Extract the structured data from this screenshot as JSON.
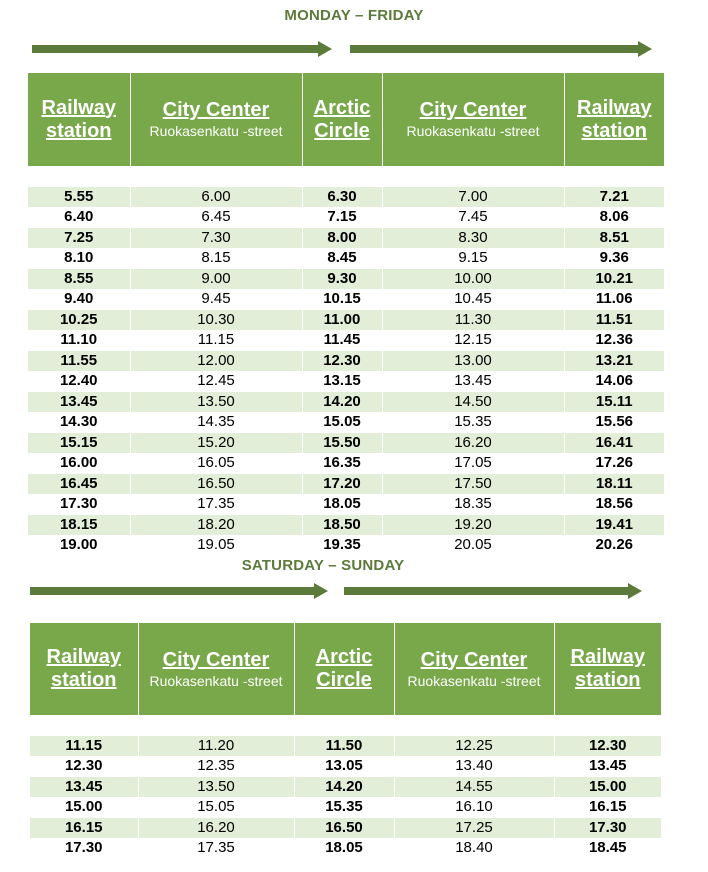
{
  "weekday": {
    "title": "MONDAY – FRIDAY",
    "headers": [
      {
        "title": "Railway station",
        "sub": ""
      },
      {
        "title": "City Center",
        "sub": "Ruokasenkatu -street"
      },
      {
        "title": "Arctic Circle",
        "sub": ""
      },
      {
        "title": "City Center",
        "sub": "Ruokasenkatu -street"
      },
      {
        "title": "Railway station",
        "sub": ""
      }
    ],
    "rows": [
      [
        "5.55",
        "6.00",
        "6.30",
        "7.00",
        "7.21"
      ],
      [
        "6.40",
        "6.45",
        "7.15",
        "7.45",
        "8.06"
      ],
      [
        "7.25",
        "7.30",
        "8.00",
        "8.30",
        "8.51"
      ],
      [
        "8.10",
        "8.15",
        "8.45",
        "9.15",
        "9.36"
      ],
      [
        "8.55",
        "9.00",
        "9.30",
        "10.00",
        "10.21"
      ],
      [
        "9.40",
        "9.45",
        "10.15",
        "10.45",
        "11.06"
      ],
      [
        "10.25",
        "10.30",
        "11.00",
        "11.30",
        "11.51"
      ],
      [
        "11.10",
        "11.15",
        "11.45",
        "12.15",
        "12.36"
      ],
      [
        "11.55",
        "12.00",
        "12.30",
        "13.00",
        "13.21"
      ],
      [
        "12.40",
        "12.45",
        "13.15",
        "13.45",
        "14.06"
      ],
      [
        "13.45",
        "13.50",
        "14.20",
        "14.50",
        "15.11"
      ],
      [
        "14.30",
        "14.35",
        "15.05",
        "15.35",
        "15.56"
      ],
      [
        "15.15",
        "15.20",
        "15.50",
        "16.20",
        "16.41"
      ],
      [
        "16.00",
        "16.05",
        "16.35",
        "17.05",
        "17.26"
      ],
      [
        "16.45",
        "16.50",
        "17.20",
        "17.50",
        "18.11"
      ],
      [
        "17.30",
        "17.35",
        "18.05",
        "18.35",
        "18.56"
      ],
      [
        "18.15",
        "18.20",
        "18.50",
        "19.20",
        "19.41"
      ],
      [
        "19.00",
        "19.05",
        "19.35",
        "20.05",
        "20.26"
      ]
    ]
  },
  "weekend": {
    "title": "SATURDAY – SUNDAY",
    "headers": [
      {
        "title": "Railway station",
        "sub": ""
      },
      {
        "title": "City Center",
        "sub": "Ruokasenkatu -street"
      },
      {
        "title": "Arctic Circle",
        "sub": ""
      },
      {
        "title": "City Center",
        "sub": "Ruokasenkatu -street"
      },
      {
        "title": "Railway station",
        "sub": ""
      }
    ],
    "rows": [
      [
        "11.15",
        "11.20",
        "11.50",
        "12.25",
        "12.30"
      ],
      [
        "12.30",
        "12.35",
        "13.05",
        "13.40",
        "13.45"
      ],
      [
        "13.45",
        "13.50",
        "14.20",
        "14.55",
        "15.00"
      ],
      [
        "15.00",
        "15.05",
        "15.35",
        "16.10",
        "16.15"
      ],
      [
        "16.15",
        "16.20",
        "16.50",
        "17.25",
        "17.30"
      ],
      [
        "17.30",
        "17.35",
        "18.05",
        "18.40",
        "18.45"
      ]
    ]
  },
  "colors": {
    "header_bg": "#79a84a",
    "arrow": "#5c7a3a",
    "row_shade": "#e3eed9"
  }
}
